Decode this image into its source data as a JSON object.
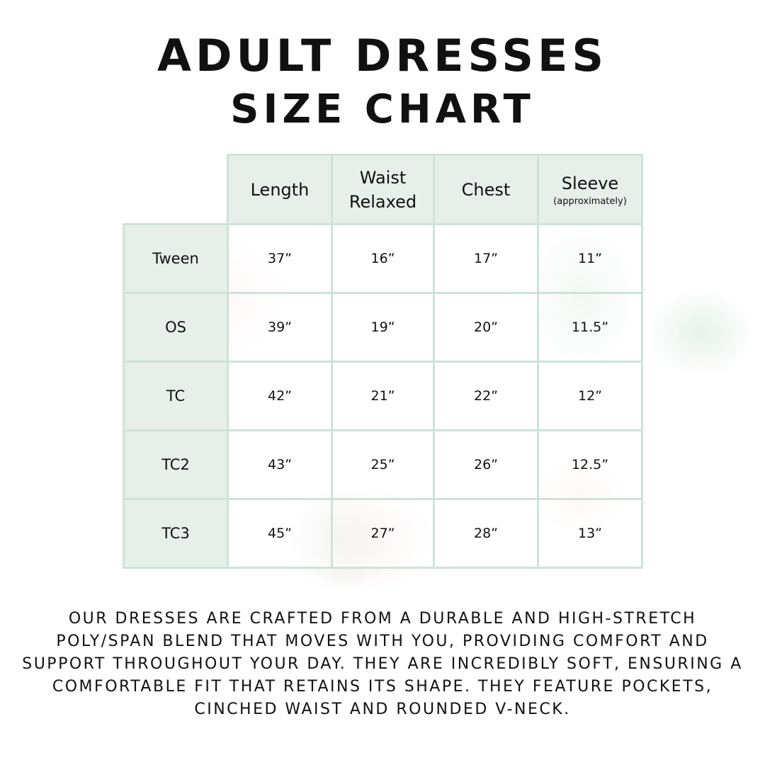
{
  "title_line1": "Adult Dresses",
  "title_line2": "Size Chart",
  "columns": [
    {
      "label": "Length",
      "sub": ""
    },
    {
      "label": "Waist Relaxed",
      "sub": ""
    },
    {
      "label": "Chest",
      "sub": ""
    },
    {
      "label": "Sleeve",
      "sub": "(approximately)"
    }
  ],
  "rows": [
    {
      "size": "Tween",
      "values": [
        "37”",
        "16”",
        "17”",
        "11”"
      ]
    },
    {
      "size": "OS",
      "values": [
        "39”",
        "19”",
        "20”",
        "11.5”"
      ]
    },
    {
      "size": "TC",
      "values": [
        "42”",
        "21”",
        "22”",
        "12”"
      ]
    },
    {
      "size": "TC2",
      "values": [
        "43”",
        "25”",
        "26”",
        "12.5”"
      ]
    },
    {
      "size": "TC3",
      "values": [
        "45”",
        "27”",
        "28”",
        "13”"
      ]
    }
  ],
  "description": "Our dresses are crafted from a durable and high-stretch poly/span blend that moves with you, providing comfort and support throughout your day. They are incredibly soft, ensuring a comfortable fit that retains its shape. They feature pockets, cinched waist and rounded V-neck.",
  "colors": {
    "header_bg": "#e6efe9",
    "border": "#cfe3d8"
  }
}
